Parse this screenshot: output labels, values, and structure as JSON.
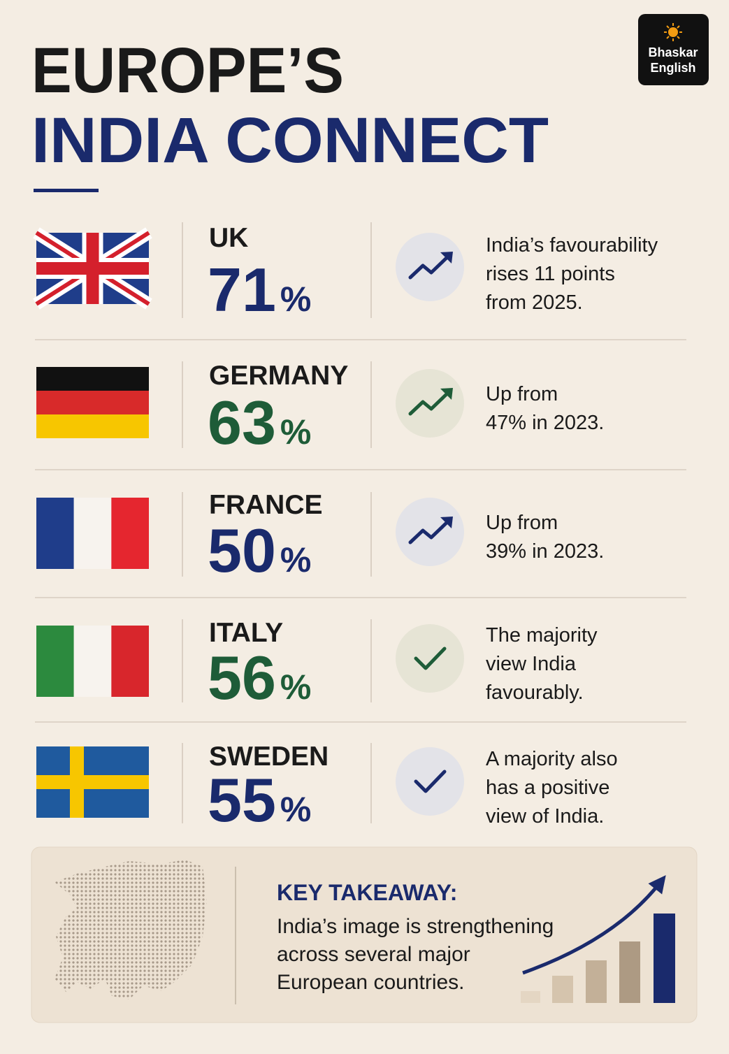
{
  "header": {
    "title_line1": "EUROPE’S",
    "title_line2": "INDIA CONNECT"
  },
  "logo": {
    "line1": "Bhaskar",
    "line2": "English"
  },
  "rows": [
    {
      "country": "UK",
      "value": "71",
      "unit": "%",
      "description": [
        "India’s favourability",
        "rises 11 points",
        "from 2025."
      ]
    },
    {
      "country": "GERMANY",
      "value": "63",
      "unit": "%",
      "description": [
        "Up from",
        "47% in 2023."
      ]
    },
    {
      "country": "FRANCE",
      "value": "50",
      "unit": "%",
      "description": [
        "Up from",
        "39% in 2023."
      ]
    },
    {
      "country": "ITALY",
      "value": "56",
      "unit": "%",
      "description": [
        "The majority",
        "view India",
        "favourably."
      ]
    },
    {
      "country": "SWEDEN",
      "value": "55",
      "unit": "%",
      "description": [
        "A majority also",
        "has a positive",
        "view of India."
      ]
    }
  ],
  "takeaway": {
    "title": "KEY TAKEAWAY:",
    "lines": [
      "India’s image is strengthening",
      "across several major",
      "European countries."
    ]
  }
}
